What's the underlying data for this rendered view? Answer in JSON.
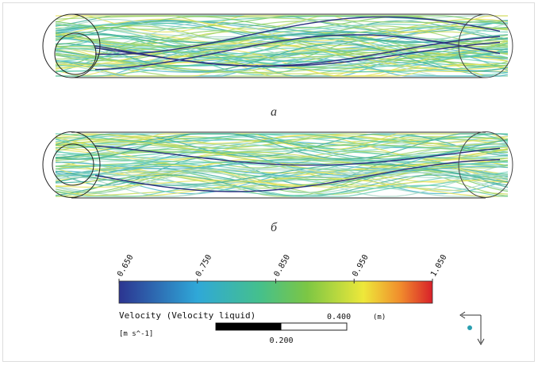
{
  "figures": [
    {
      "label": "a"
    },
    {
      "label": "б"
    }
  ],
  "colorbar": {
    "range": [
      0.65,
      1.05
    ],
    "ticks": [
      {
        "value": 0.65,
        "label": "0.650"
      },
      {
        "value": 0.75,
        "label": "0.750"
      },
      {
        "value": 0.85,
        "label": "0.850"
      },
      {
        "value": 0.95,
        "label": "0.950"
      },
      {
        "value": 1.05,
        "label": "1.050"
      }
    ],
    "title": "Velocity (Velocity liquid)",
    "units": "[m s^-1]"
  },
  "scale_bar": {
    "full": {
      "value": 0.4,
      "label": "0.400"
    },
    "half": {
      "value": 0.2,
      "label": "0.200"
    },
    "unit": "(m)"
  }
}
